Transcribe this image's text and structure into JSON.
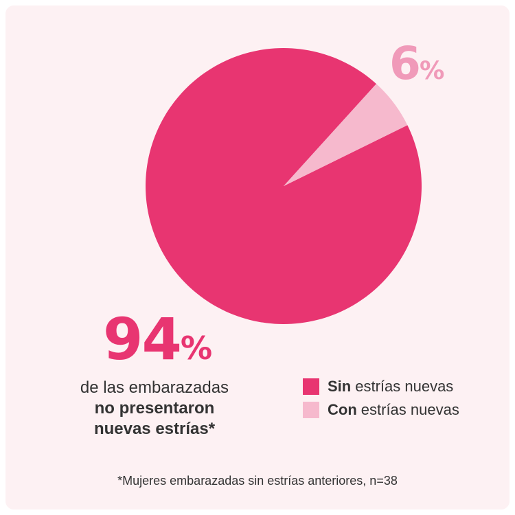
{
  "chart_data": {
    "type": "pie",
    "slices": [
      {
        "label": "Sin estrías nuevas",
        "value": 94,
        "color": "#e83571"
      },
      {
        "label": "Con estrías nuevas",
        "value": 6,
        "color": "#f6b9cd"
      }
    ],
    "data_labels": {
      "small": {
        "number": "6",
        "unit": "%"
      },
      "big": {
        "number": "94",
        "unit": "%"
      }
    },
    "caption": {
      "line1": "de las embarazadas",
      "line2": "no presentaron",
      "line3": "nuevas estrías*"
    },
    "legend": [
      {
        "bold": "Sin",
        "text": "estrías nuevas",
        "color": "#e83571"
      },
      {
        "bold": "Con",
        "text": "estrías nuevas",
        "color": "#f6b9cd"
      }
    ],
    "footnote": "*Mujeres embarazadas sin estrías anteriores, n=38",
    "background": "#fdf1f3"
  }
}
